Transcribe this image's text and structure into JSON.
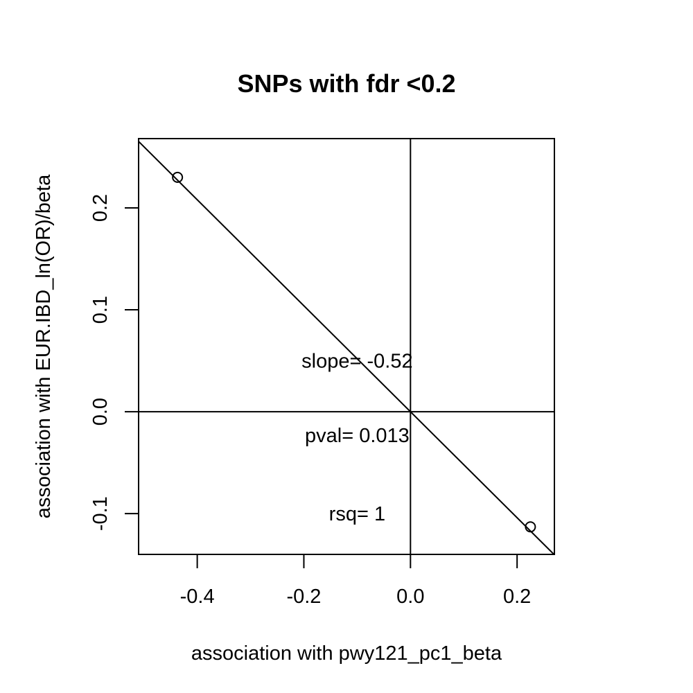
{
  "chart_data": {
    "type": "scatter",
    "title": "SNPs with fdr <0.2",
    "xlabel": "association with pwy121_pc1_beta",
    "ylabel": "association with EUR.IBD_ln(OR)/beta",
    "xlim": [
      -0.51,
      0.27
    ],
    "ylim": [
      -0.14,
      0.268
    ],
    "x_ticks": [
      {
        "value": -0.4,
        "label": "-0.4"
      },
      {
        "value": -0.2,
        "label": "-0.2"
      },
      {
        "value": 0.0,
        "label": "0.0"
      },
      {
        "value": 0.2,
        "label": "0.2"
      }
    ],
    "y_ticks": [
      {
        "value": -0.1,
        "label": "-0.1"
      },
      {
        "value": 0.0,
        "label": "0.0"
      },
      {
        "value": 0.1,
        "label": "0.1"
      },
      {
        "value": 0.2,
        "label": "0.2"
      }
    ],
    "points": [
      {
        "x": -0.437,
        "y": 0.23
      },
      {
        "x": 0.225,
        "y": -0.113
      }
    ],
    "reference_lines": {
      "horizontal": 0,
      "vertical": 0
    },
    "fit_line": {
      "slope": -0.52,
      "intercept": 0
    },
    "annotations": [
      {
        "text": "slope= -0.52",
        "x": -0.1,
        "y": 0.05
      },
      {
        "text": "pval= 0.013",
        "x": -0.1,
        "y": -0.023
      },
      {
        "text": "rsq= 1",
        "x": -0.1,
        "y": -0.1
      }
    ],
    "grid": false,
    "legend": "none",
    "colors": {
      "ink": "#000000",
      "background": "#ffffff"
    }
  }
}
